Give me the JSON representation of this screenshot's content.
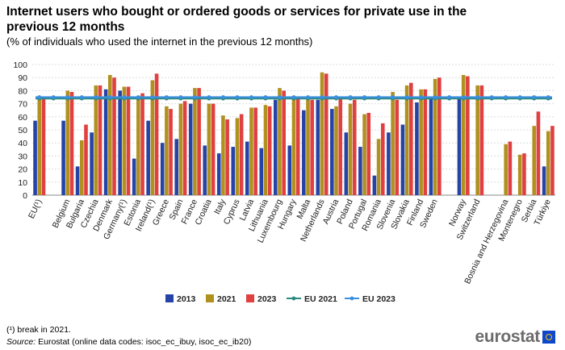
{
  "title": "Internet users who bought or ordered goods or services for private use in the previous 12 months",
  "subtitle": "(% of individuals who used the internet in the previous 12 months)",
  "footnote": "(¹) break in 2021.",
  "source_label": "Source:",
  "source_text": " Eurostat (online data codes: isoc_ec_ibuy, isoc_ec_ib20)",
  "logo_text": "eurostat",
  "colors": {
    "2013": "#2644a7",
    "2021": "#b09120",
    "2023": "#e04040",
    "EU 2021": "#2a8a7e",
    "EU 2023": "#3c8fdf"
  },
  "chart_data": {
    "type": "bar",
    "ylim": [
      0,
      100
    ],
    "yticks": [
      0,
      10,
      20,
      30,
      40,
      50,
      60,
      70,
      80,
      90,
      100
    ],
    "grid": true,
    "legend_position": "bottom",
    "categories": [
      "EU(¹)",
      "",
      "Belgium",
      "Bulgaria",
      "Czechia",
      "Denmark",
      "Germany(¹)",
      "Estonia",
      "Ireland(¹)",
      "Greece",
      "Spain",
      "France",
      "Croatia",
      "Italy",
      "Cyprus",
      "Latvia",
      "Lithuania",
      "Luxembourg",
      "Hungary",
      "Malta",
      "Netherlands",
      "Austria",
      "Poland",
      "Portugal",
      "Romania",
      "Slovenia",
      "Slovakia",
      "Finland",
      "Sweden",
      "",
      "Norway",
      "Switzerland",
      "",
      "Bosnia and Herzegovina",
      "Montenegro",
      "Serbia",
      "Türkiye"
    ],
    "series": [
      {
        "name": "2013",
        "values": [
          57,
          null,
          57,
          22,
          48,
          81,
          80,
          28,
          57,
          40,
          43,
          70,
          38,
          32,
          37,
          41,
          36,
          73,
          38,
          65,
          73,
          66,
          48,
          37,
          15,
          48,
          54,
          71,
          74,
          null,
          74,
          null,
          null,
          null,
          null,
          null,
          22
        ]
      },
      {
        "name": "2021",
        "values": [
          74,
          null,
          80,
          42,
          84,
          92,
          83,
          76,
          88,
          68,
          70,
          82,
          70,
          61,
          59,
          67,
          69,
          82,
          74,
          75,
          94,
          68,
          70,
          62,
          43,
          79,
          84,
          81,
          89,
          null,
          92,
          84,
          null,
          39,
          31,
          53,
          49
        ]
      },
      {
        "name": "2023",
        "values": [
          75,
          null,
          79,
          54,
          84,
          90,
          83,
          78,
          93,
          66,
          72,
          82,
          70,
          58,
          62,
          67,
          68,
          80,
          75,
          73,
          93,
          75,
          73,
          63,
          55,
          73,
          86,
          81,
          90,
          null,
          91,
          84,
          null,
          41,
          32,
          64,
          53
        ]
      },
      {
        "name": "EU 2021",
        "type": "line",
        "value": 74
      },
      {
        "name": "EU 2023",
        "type": "line",
        "value": 75
      }
    ]
  }
}
